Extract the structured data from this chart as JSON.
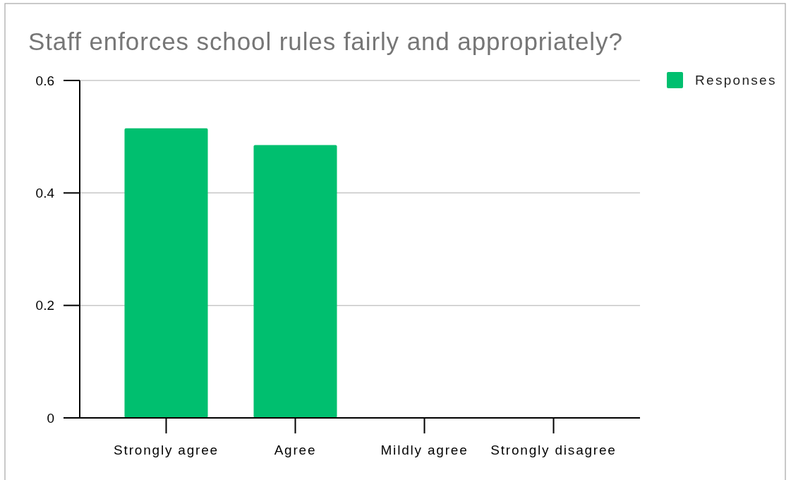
{
  "chart_data": {
    "type": "bar",
    "title": "Staff enforces school rules fairly and appropriately?",
    "categories": [
      "Strongly agree",
      "Agree",
      "Mildly agree",
      "Strongly disagree"
    ],
    "series": [
      {
        "name": "Responses",
        "color": "#00bf6f",
        "values": [
          0.515,
          0.485,
          0,
          0
        ]
      }
    ],
    "ylim": [
      0,
      0.6
    ],
    "yticks": [
      0,
      0.2,
      0.4,
      0.6
    ],
    "grid": "y",
    "legend": "top right"
  }
}
